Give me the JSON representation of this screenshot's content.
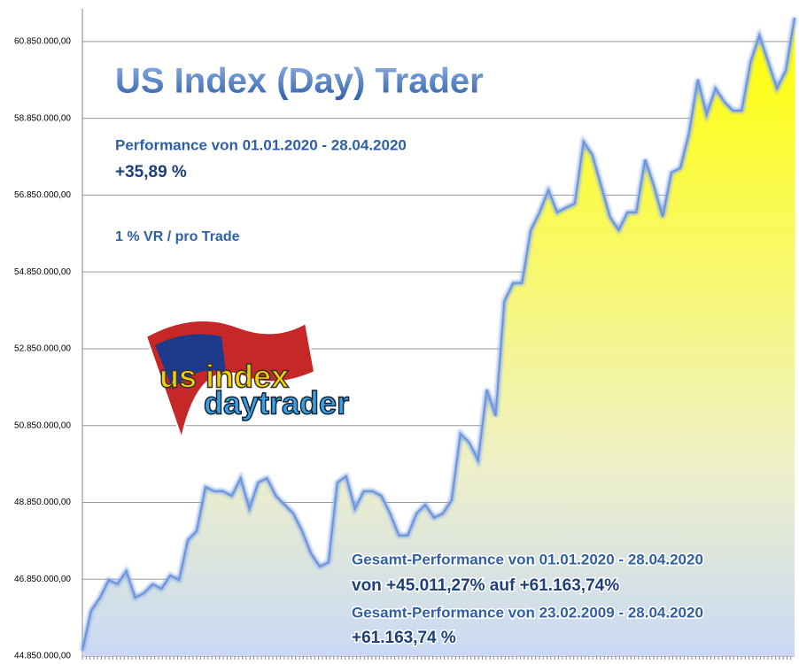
{
  "chart_data": {
    "type": "area",
    "title": "US Index (Day) Trader",
    "annotations": [
      "Performance  von  01.01.2020 - 28.04.2020",
      "+35,89 %",
      "1 % VR / pro Trade",
      "Gesamt-Performance  von  01.01.2020 - 28.04.2020",
      "von +45.011,27% auf  +61.163,74%",
      "Gesamt-Performance  von  23.02.2009 - 28.04.2020",
      "+61.163,74 %"
    ],
    "logo_text": [
      "us index",
      "daytrader"
    ],
    "values": [
      44990000,
      46030000,
      46370000,
      46830000,
      46720000,
      47060000,
      46370000,
      46490000,
      46720000,
      46600000,
      46950000,
      46830000,
      47870000,
      48100000,
      49250000,
      49140000,
      49140000,
      49020000,
      49480000,
      48680000,
      49370000,
      49480000,
      49020000,
      48790000,
      48560000,
      48100000,
      47520000,
      47180000,
      47290000,
      49370000,
      49530000,
      48680000,
      49140000,
      49140000,
      49020000,
      48560000,
      47990000,
      47990000,
      48560000,
      48790000,
      48450000,
      48560000,
      48910000,
      50640000,
      50410000,
      49940000,
      51790000,
      51100000,
      54090000,
      54560000,
      54560000,
      55940000,
      56400000,
      56980000,
      56400000,
      56520000,
      56630000,
      58240000,
      57900000,
      57090000,
      56280000,
      55940000,
      56400000,
      56400000,
      57780000,
      57090000,
      56280000,
      57440000,
      57550000,
      58470000,
      59860000,
      58940000,
      59630000,
      59280000,
      59050000,
      59050000,
      60320000,
      61010000,
      60320000,
      59630000,
      60090000,
      61470000
    ],
    "ylim": [
      44850000,
      61700000
    ],
    "yticks": [
      {
        "value": 44850000,
        "label": "44.850.000,00"
      },
      {
        "value": 46850000,
        "label": "46.850.000,00"
      },
      {
        "value": 48850000,
        "label": "48.850.000,00"
      },
      {
        "value": 50850000,
        "label": "50.850.000,00"
      },
      {
        "value": 52850000,
        "label": "52.850.000,00"
      },
      {
        "value": 54850000,
        "label": "54.850.000,00"
      },
      {
        "value": 56850000,
        "label": "56.850.000,00"
      },
      {
        "value": 58850000,
        "label": "58.850.000,00"
      },
      {
        "value": 60850000,
        "label": "60.850.000,00"
      }
    ],
    "grid": true
  }
}
